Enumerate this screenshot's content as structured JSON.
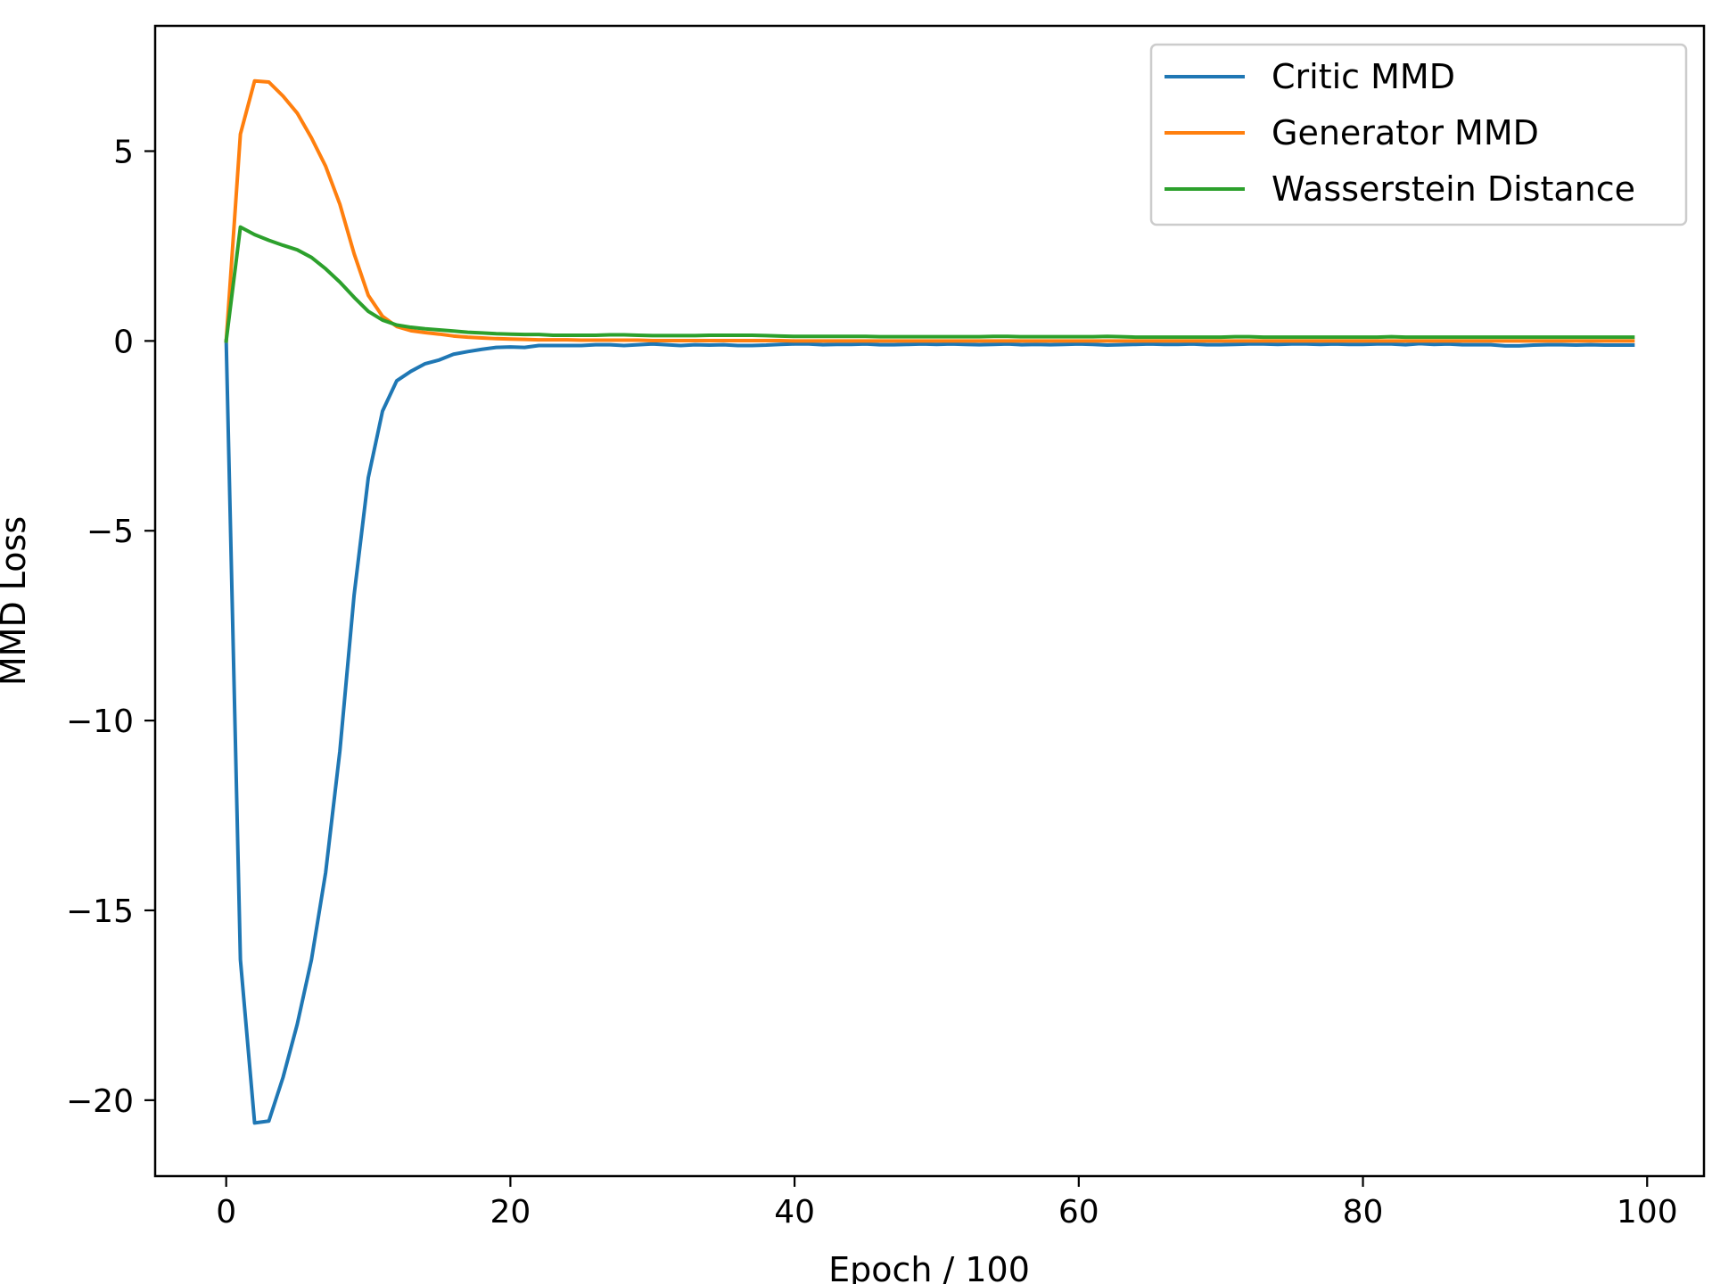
{
  "chart_data": {
    "type": "line",
    "title": "",
    "xlabel": "Epoch / 100",
    "ylabel": "MMD Loss",
    "xlim": [
      -5,
      104
    ],
    "ylim": [
      -22,
      8.3
    ],
    "xticks": [
      0,
      20,
      40,
      60,
      80,
      100
    ],
    "xtick_labels": [
      "0",
      "20",
      "40",
      "60",
      "80",
      "100"
    ],
    "yticks": [
      5,
      0,
      -5,
      -10,
      -15,
      -20
    ],
    "ytick_labels": [
      "5",
      "0",
      "−5",
      "−10",
      "−15",
      "−20"
    ],
    "grid": false,
    "legend_position": "upper right",
    "series": [
      {
        "name": "Critic MMD",
        "color": "#1f77b4",
        "x": [
          0,
          1,
          2,
          3,
          4,
          5,
          6,
          7,
          8,
          9,
          10,
          11,
          12,
          13,
          14,
          15,
          16,
          17,
          18,
          19,
          20,
          21,
          22,
          23,
          24,
          25,
          26,
          27,
          28,
          29,
          30,
          31,
          32,
          33,
          34,
          35,
          36,
          37,
          38,
          39,
          40,
          41,
          42,
          43,
          44,
          45,
          46,
          47,
          48,
          49,
          50,
          51,
          52,
          53,
          54,
          55,
          56,
          57,
          58,
          59,
          60,
          61,
          62,
          63,
          64,
          65,
          66,
          67,
          68,
          69,
          70,
          71,
          72,
          73,
          74,
          75,
          76,
          77,
          78,
          79,
          80,
          81,
          82,
          83,
          84,
          85,
          86,
          87,
          88,
          89,
          90,
          91,
          92,
          93,
          94,
          95,
          96,
          97,
          98,
          99
        ],
        "values": [
          0,
          -16.3,
          -20.6,
          -20.55,
          -19.4,
          -18.0,
          -16.3,
          -14.0,
          -10.8,
          -6.7,
          -3.6,
          -1.85,
          -1.05,
          -0.8,
          -0.6,
          -0.5,
          -0.35,
          -0.28,
          -0.22,
          -0.17,
          -0.16,
          -0.17,
          -0.12,
          -0.12,
          -0.12,
          -0.12,
          -0.1,
          -0.1,
          -0.12,
          -0.1,
          -0.08,
          -0.1,
          -0.12,
          -0.1,
          -0.11,
          -0.1,
          -0.12,
          -0.12,
          -0.11,
          -0.09,
          -0.08,
          -0.08,
          -0.1,
          -0.09,
          -0.09,
          -0.08,
          -0.1,
          -0.1,
          -0.09,
          -0.08,
          -0.09,
          -0.08,
          -0.09,
          -0.1,
          -0.09,
          -0.08,
          -0.1,
          -0.09,
          -0.1,
          -0.09,
          -0.08,
          -0.09,
          -0.11,
          -0.1,
          -0.09,
          -0.08,
          -0.09,
          -0.09,
          -0.08,
          -0.1,
          -0.1,
          -0.09,
          -0.08,
          -0.08,
          -0.09,
          -0.08,
          -0.08,
          -0.09,
          -0.08,
          -0.09,
          -0.09,
          -0.08,
          -0.08,
          -0.1,
          -0.07,
          -0.09,
          -0.08,
          -0.1,
          -0.1,
          -0.1,
          -0.13,
          -0.13,
          -0.11,
          -0.1,
          -0.1,
          -0.11,
          -0.1,
          -0.11,
          -0.11,
          -0.11
        ]
      },
      {
        "name": "Generator MMD",
        "color": "#ff7f0e",
        "x": [
          0,
          1,
          2,
          3,
          4,
          5,
          6,
          7,
          8,
          9,
          10,
          11,
          12,
          13,
          14,
          15,
          16,
          17,
          18,
          19,
          20,
          21,
          22,
          23,
          24,
          25,
          26,
          27,
          28,
          29,
          30,
          31,
          32,
          33,
          34,
          35,
          36,
          37,
          38,
          39,
          40,
          41,
          42,
          43,
          44,
          45,
          46,
          47,
          48,
          49,
          50,
          51,
          52,
          53,
          54,
          55,
          56,
          57,
          58,
          59,
          60,
          61,
          62,
          63,
          64,
          65,
          66,
          67,
          68,
          69,
          70,
          71,
          72,
          73,
          74,
          75,
          76,
          77,
          78,
          79,
          80,
          81,
          82,
          83,
          84,
          85,
          86,
          87,
          88,
          89,
          90,
          91,
          92,
          93,
          94,
          95,
          96,
          97,
          98,
          99
        ],
        "values": [
          0,
          5.45,
          6.85,
          6.82,
          6.45,
          6.0,
          5.35,
          4.6,
          3.6,
          2.3,
          1.2,
          0.65,
          0.38,
          0.27,
          0.22,
          0.18,
          0.13,
          0.1,
          0.08,
          0.06,
          0.05,
          0.04,
          0.03,
          0.03,
          0.03,
          0.02,
          0.02,
          0.02,
          0.02,
          0.02,
          0.01,
          0.01,
          0.01,
          0.01,
          0.01,
          0.01,
          0.01,
          0.01,
          0.01,
          0.01,
          0.0,
          0.0,
          0.0,
          0.0,
          0.0,
          0.0,
          0.0,
          0.0,
          0.0,
          0.0,
          0.0,
          0.0,
          0.0,
          0.0,
          0.0,
          0.0,
          0.0,
          0.0,
          0.0,
          0.0,
          0.0,
          0.0,
          0.0,
          0.0,
          0.0,
          0.0,
          0.0,
          0.0,
          0.0,
          0.0,
          0.0,
          0.0,
          0.0,
          0.0,
          0.0,
          0.0,
          0.0,
          0.0,
          0.0,
          0.0,
          0.0,
          0.0,
          0.0,
          0.0,
          0.0,
          0.0,
          0.0,
          0.0,
          0.0,
          0.0,
          0.0,
          0.0,
          0.0,
          0.0,
          0.0,
          0.0,
          0.0,
          0.0,
          0.0,
          0.0
        ]
      },
      {
        "name": "Wasserstein Distance",
        "color": "#2ca02c",
        "x": [
          0,
          1,
          2,
          3,
          4,
          5,
          6,
          7,
          8,
          9,
          10,
          11,
          12,
          13,
          14,
          15,
          16,
          17,
          18,
          19,
          20,
          21,
          22,
          23,
          24,
          25,
          26,
          27,
          28,
          29,
          30,
          31,
          32,
          33,
          34,
          35,
          36,
          37,
          38,
          39,
          40,
          41,
          42,
          43,
          44,
          45,
          46,
          47,
          48,
          49,
          50,
          51,
          52,
          53,
          54,
          55,
          56,
          57,
          58,
          59,
          60,
          61,
          62,
          63,
          64,
          65,
          66,
          67,
          68,
          69,
          70,
          71,
          72,
          73,
          74,
          75,
          76,
          77,
          78,
          79,
          80,
          81,
          82,
          83,
          84,
          85,
          86,
          87,
          88,
          89,
          90,
          91,
          92,
          93,
          94,
          95,
          96,
          97,
          98,
          99
        ],
        "values": [
          0,
          3.0,
          2.8,
          2.65,
          2.52,
          2.4,
          2.2,
          1.9,
          1.55,
          1.15,
          0.78,
          0.55,
          0.42,
          0.36,
          0.32,
          0.29,
          0.26,
          0.23,
          0.21,
          0.19,
          0.18,
          0.17,
          0.17,
          0.15,
          0.15,
          0.15,
          0.15,
          0.16,
          0.16,
          0.15,
          0.14,
          0.14,
          0.14,
          0.14,
          0.15,
          0.15,
          0.15,
          0.15,
          0.14,
          0.13,
          0.12,
          0.12,
          0.12,
          0.12,
          0.12,
          0.12,
          0.11,
          0.11,
          0.11,
          0.11,
          0.11,
          0.11,
          0.11,
          0.11,
          0.12,
          0.12,
          0.11,
          0.11,
          0.11,
          0.11,
          0.11,
          0.11,
          0.12,
          0.11,
          0.1,
          0.1,
          0.1,
          0.1,
          0.1,
          0.1,
          0.1,
          0.11,
          0.11,
          0.1,
          0.1,
          0.1,
          0.1,
          0.1,
          0.1,
          0.1,
          0.1,
          0.1,
          0.11,
          0.1,
          0.1,
          0.1,
          0.1,
          0.1,
          0.1,
          0.1,
          0.1,
          0.1,
          0.1,
          0.1,
          0.1,
          0.1,
          0.1,
          0.1,
          0.1,
          0.1
        ]
      }
    ]
  }
}
